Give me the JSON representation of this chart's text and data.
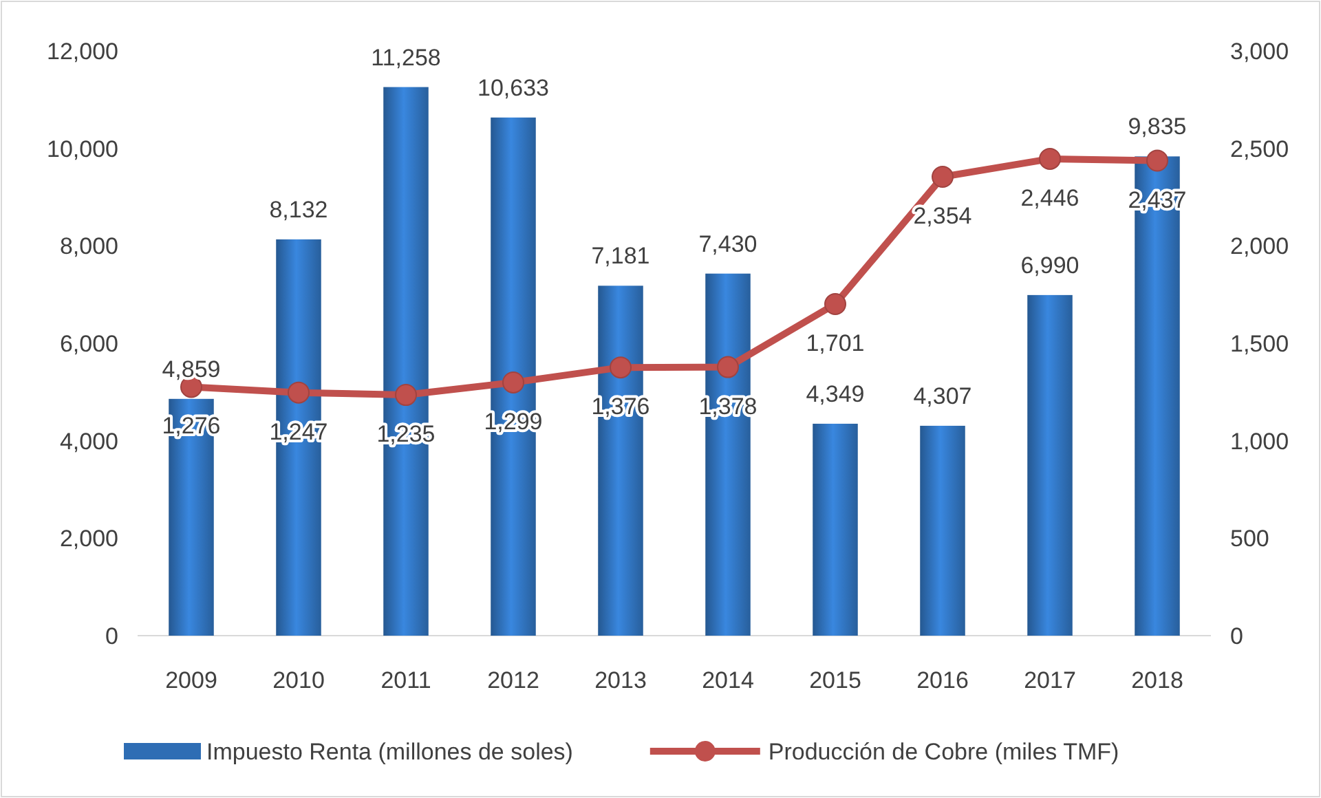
{
  "chart_data": {
    "type": "bar",
    "categories": [
      "2009",
      "2010",
      "2011",
      "2012",
      "2013",
      "2014",
      "2015",
      "2016",
      "2017",
      "2018"
    ],
    "series": [
      {
        "name": "Impuesto Renta (millones de soles)",
        "color": "#2e6db4",
        "values": [
          4859,
          8132,
          11258,
          10633,
          7181,
          7430,
          4349,
          4307,
          6990,
          9835
        ],
        "value_labels": [
          "4,859",
          "8,132",
          "11,258",
          "10,633",
          "7,181",
          "7,430",
          "4,349",
          "4,307",
          "6,990",
          "9,835"
        ]
      },
      {
        "name": "Producción de Cobre (miles TMF)",
        "type": "line",
        "axis": "y2",
        "color": "#c0504d",
        "marker": "circle",
        "values": [
          1276,
          1247,
          1235,
          1299,
          1376,
          1378,
          1701,
          2354,
          2446,
          2437
        ],
        "value_labels": [
          "1,276",
          "1,247",
          "1,235",
          "1,299",
          "1,376",
          "1,378",
          "1,701",
          "2,354",
          "2,446",
          "2,437"
        ]
      }
    ],
    "ylim": [
      0,
      12000
    ],
    "yticks": [
      0,
      {
        "value": 2000,
        "label": "2,000"
      },
      {
        "value": 4000,
        "label": "4,000"
      },
      {
        "value": 6000,
        "label": "6,000"
      },
      {
        "value": 8000,
        "label": "8,000"
      },
      {
        "value": 10000,
        "label": "10,000"
      },
      {
        "value": 12000,
        "label": "12,000"
      }
    ],
    "y2lim": [
      0,
      3000
    ],
    "y2ticks": [
      0,
      500,
      {
        "value": 1000,
        "label": "1,000"
      },
      {
        "value": 1500,
        "label": "1,500"
      },
      {
        "value": 2000,
        "label": "2,000"
      },
      {
        "value": 2500,
        "label": "2,500"
      },
      {
        "value": 3000,
        "label": "3,000"
      }
    ],
    "grid": false,
    "legend": "bottom"
  }
}
